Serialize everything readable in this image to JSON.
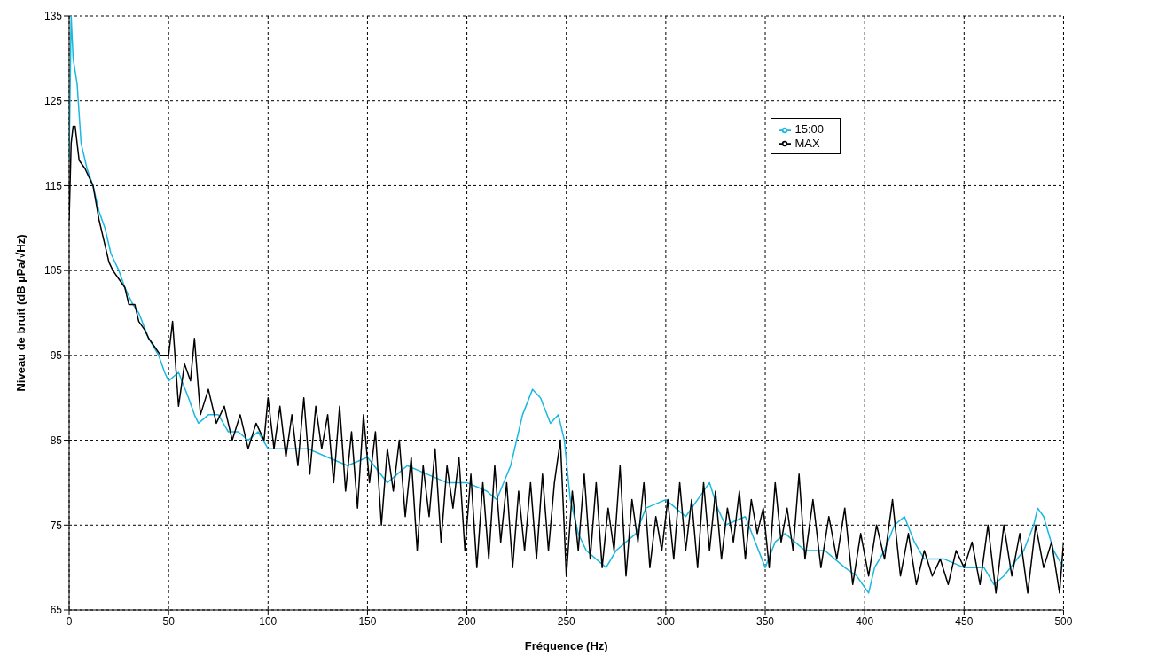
{
  "chart_data": {
    "type": "line",
    "xlabel": "Fréquence (Hz)",
    "ylabel": "Niveau de bruit (dB µPa/√Hz)",
    "xlim": [
      0,
      500
    ],
    "ylim": [
      65,
      135
    ],
    "xticks": [
      0,
      50,
      100,
      150,
      200,
      250,
      300,
      350,
      400,
      450,
      500
    ],
    "yticks": [
      65,
      75,
      85,
      95,
      105,
      115,
      125,
      135
    ],
    "grid": true,
    "legend": "top right",
    "marker": "none",
    "line_style": "solid",
    "series": [
      {
        "name": "15:00",
        "color": "#1ab8e0",
        "x": [
          0,
          1,
          2,
          4,
          6,
          9,
          12,
          15,
          18,
          21,
          25,
          28,
          32,
          35,
          40,
          45,
          48,
          50,
          55,
          60,
          63,
          65,
          70,
          75,
          80,
          85,
          90,
          95,
          100,
          110,
          120,
          130,
          140,
          150,
          160,
          170,
          180,
          190,
          200,
          210,
          215,
          222,
          228,
          233,
          237,
          242,
          246,
          249,
          252,
          256,
          260,
          265,
          270,
          275,
          280,
          285,
          290,
          300,
          310,
          316,
          322,
          326,
          330,
          340,
          345,
          350,
          355,
          360,
          370,
          380,
          390,
          396,
          402,
          405,
          410,
          415,
          420,
          425,
          430,
          440,
          450,
          460,
          465,
          470,
          480,
          485,
          487,
          490,
          495,
          500
        ],
        "values": [
          118,
          135,
          130,
          127,
          120,
          117,
          115,
          112,
          110,
          107,
          105,
          103,
          101,
          100,
          97,
          95,
          93,
          92,
          93,
          90,
          88,
          87,
          88,
          88,
          86,
          86,
          85,
          86,
          84,
          84,
          84,
          83,
          82,
          83,
          80,
          82,
          81,
          80,
          80,
          79,
          78,
          82,
          88,
          91,
          90,
          87,
          88,
          85,
          78,
          74,
          72,
          71,
          70,
          72,
          73,
          74,
          77,
          78,
          76,
          78,
          80,
          77,
          75,
          76,
          73,
          70,
          73,
          74,
          72,
          72,
          70,
          69,
          67,
          70,
          72,
          75,
          76,
          73,
          71,
          71,
          70,
          70,
          68,
          69,
          72,
          75,
          77,
          76,
          72,
          70
        ]
      },
      {
        "name": "MAX",
        "color": "#000000",
        "x": [
          0,
          1,
          2,
          3,
          5,
          8,
          10,
          12,
          15,
          18,
          20,
          22,
          25,
          28,
          30,
          33,
          35,
          38,
          40,
          43,
          46,
          50,
          52,
          55,
          58,
          61,
          63,
          66,
          70,
          74,
          78,
          82,
          86,
          90,
          94,
          98,
          100,
          103,
          106,
          109,
          112,
          115,
          118,
          121,
          124,
          127,
          130,
          133,
          136,
          139,
          142,
          145,
          148,
          151,
          154,
          157,
          160,
          163,
          166,
          169,
          172,
          175,
          178,
          181,
          184,
          187,
          190,
          193,
          196,
          199,
          202,
          205,
          208,
          211,
          214,
          217,
          220,
          223,
          226,
          229,
          232,
          235,
          238,
          241,
          244,
          247,
          250,
          253,
          256,
          259,
          262,
          265,
          268,
          271,
          274,
          277,
          280,
          283,
          286,
          289,
          292,
          295,
          298,
          301,
          304,
          307,
          310,
          313,
          316,
          319,
          322,
          325,
          328,
          331,
          334,
          337,
          340,
          343,
          346,
          349,
          352,
          355,
          358,
          361,
          364,
          367,
          370,
          374,
          378,
          382,
          386,
          390,
          394,
          398,
          402,
          406,
          410,
          414,
          418,
          422,
          426,
          430,
          434,
          438,
          442,
          446,
          450,
          454,
          458,
          462,
          466,
          470,
          474,
          478,
          482,
          486,
          490,
          494,
          498,
          500
        ],
        "values": [
          111,
          120,
          122,
          122,
          118,
          117,
          116,
          115,
          111,
          108,
          106,
          105,
          104,
          103,
          101,
          101,
          99,
          98,
          97,
          96,
          95,
          95,
          99,
          89,
          94,
          92,
          97,
          88,
          91,
          87,
          89,
          85,
          88,
          84,
          87,
          85,
          90,
          84,
          89,
          83,
          88,
          82,
          90,
          81,
          89,
          84,
          88,
          80,
          89,
          79,
          86,
          77,
          88,
          80,
          86,
          75,
          84,
          79,
          85,
          76,
          83,
          72,
          82,
          76,
          84,
          73,
          82,
          77,
          83,
          72,
          81,
          70,
          80,
          71,
          82,
          73,
          80,
          70,
          79,
          72,
          80,
          71,
          81,
          72,
          80,
          85,
          69,
          79,
          72,
          81,
          71,
          80,
          70,
          77,
          72,
          82,
          69,
          78,
          73,
          80,
          70,
          76,
          72,
          78,
          71,
          80,
          72,
          78,
          70,
          80,
          72,
          79,
          71,
          77,
          73,
          79,
          71,
          78,
          74,
          77,
          70,
          80,
          73,
          77,
          72,
          81,
          71,
          78,
          70,
          76,
          71,
          77,
          68,
          74,
          69,
          75,
          71,
          78,
          69,
          74,
          68,
          72,
          69,
          71,
          68,
          72,
          70,
          73,
          68,
          75,
          67,
          75,
          69,
          74,
          67,
          75,
          70,
          73,
          67,
          73
        ]
      }
    ]
  }
}
